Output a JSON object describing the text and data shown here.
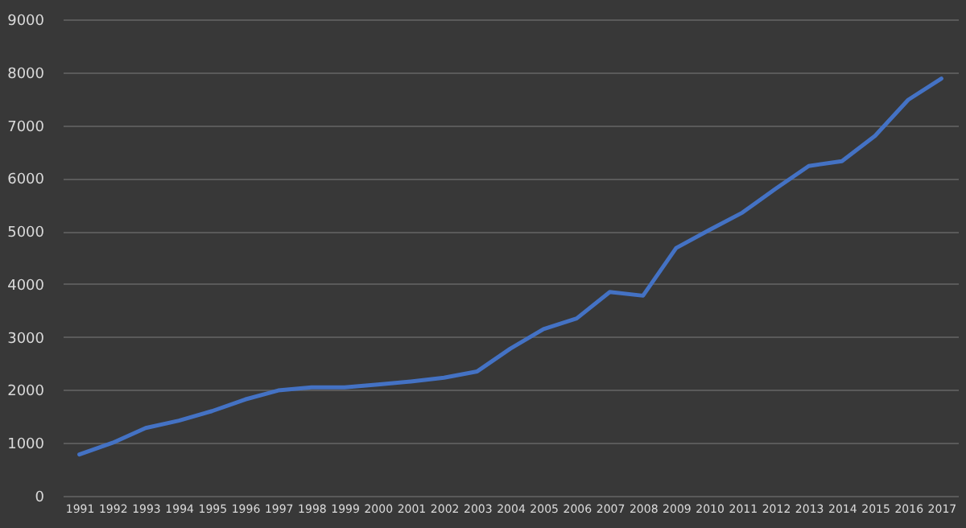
{
  "chart_data": {
    "type": "line",
    "categories": [
      "1991",
      "1992",
      "1993",
      "1994",
      "1995",
      "1996",
      "1997",
      "1998",
      "1999",
      "2000",
      "2001",
      "2002",
      "2003",
      "2004",
      "2005",
      "2006",
      "2007",
      "2008",
      "2009",
      "2010",
      "2011",
      "2012",
      "2013",
      "2014",
      "2015",
      "2016",
      "2017"
    ],
    "series": [
      {
        "color": "#4472c4",
        "values": [
          780,
          1000,
          1280,
          1420,
          1600,
          1820,
          1990,
          2050,
          2050,
          2100,
          2160,
          2230,
          2350,
          2780,
          3150,
          3350,
          3850,
          3780,
          4680,
          5020,
          5350,
          5800,
          6230,
          6320,
          6800,
          7480,
          7880
        ]
      }
    ],
    "ylim": [
      0,
      9000
    ],
    "yticks": [
      0,
      1000,
      2000,
      3000,
      4000,
      5000,
      6000,
      7000,
      8000,
      9000
    ],
    "grid": "y",
    "marker": "none",
    "line_style": "solid"
  }
}
